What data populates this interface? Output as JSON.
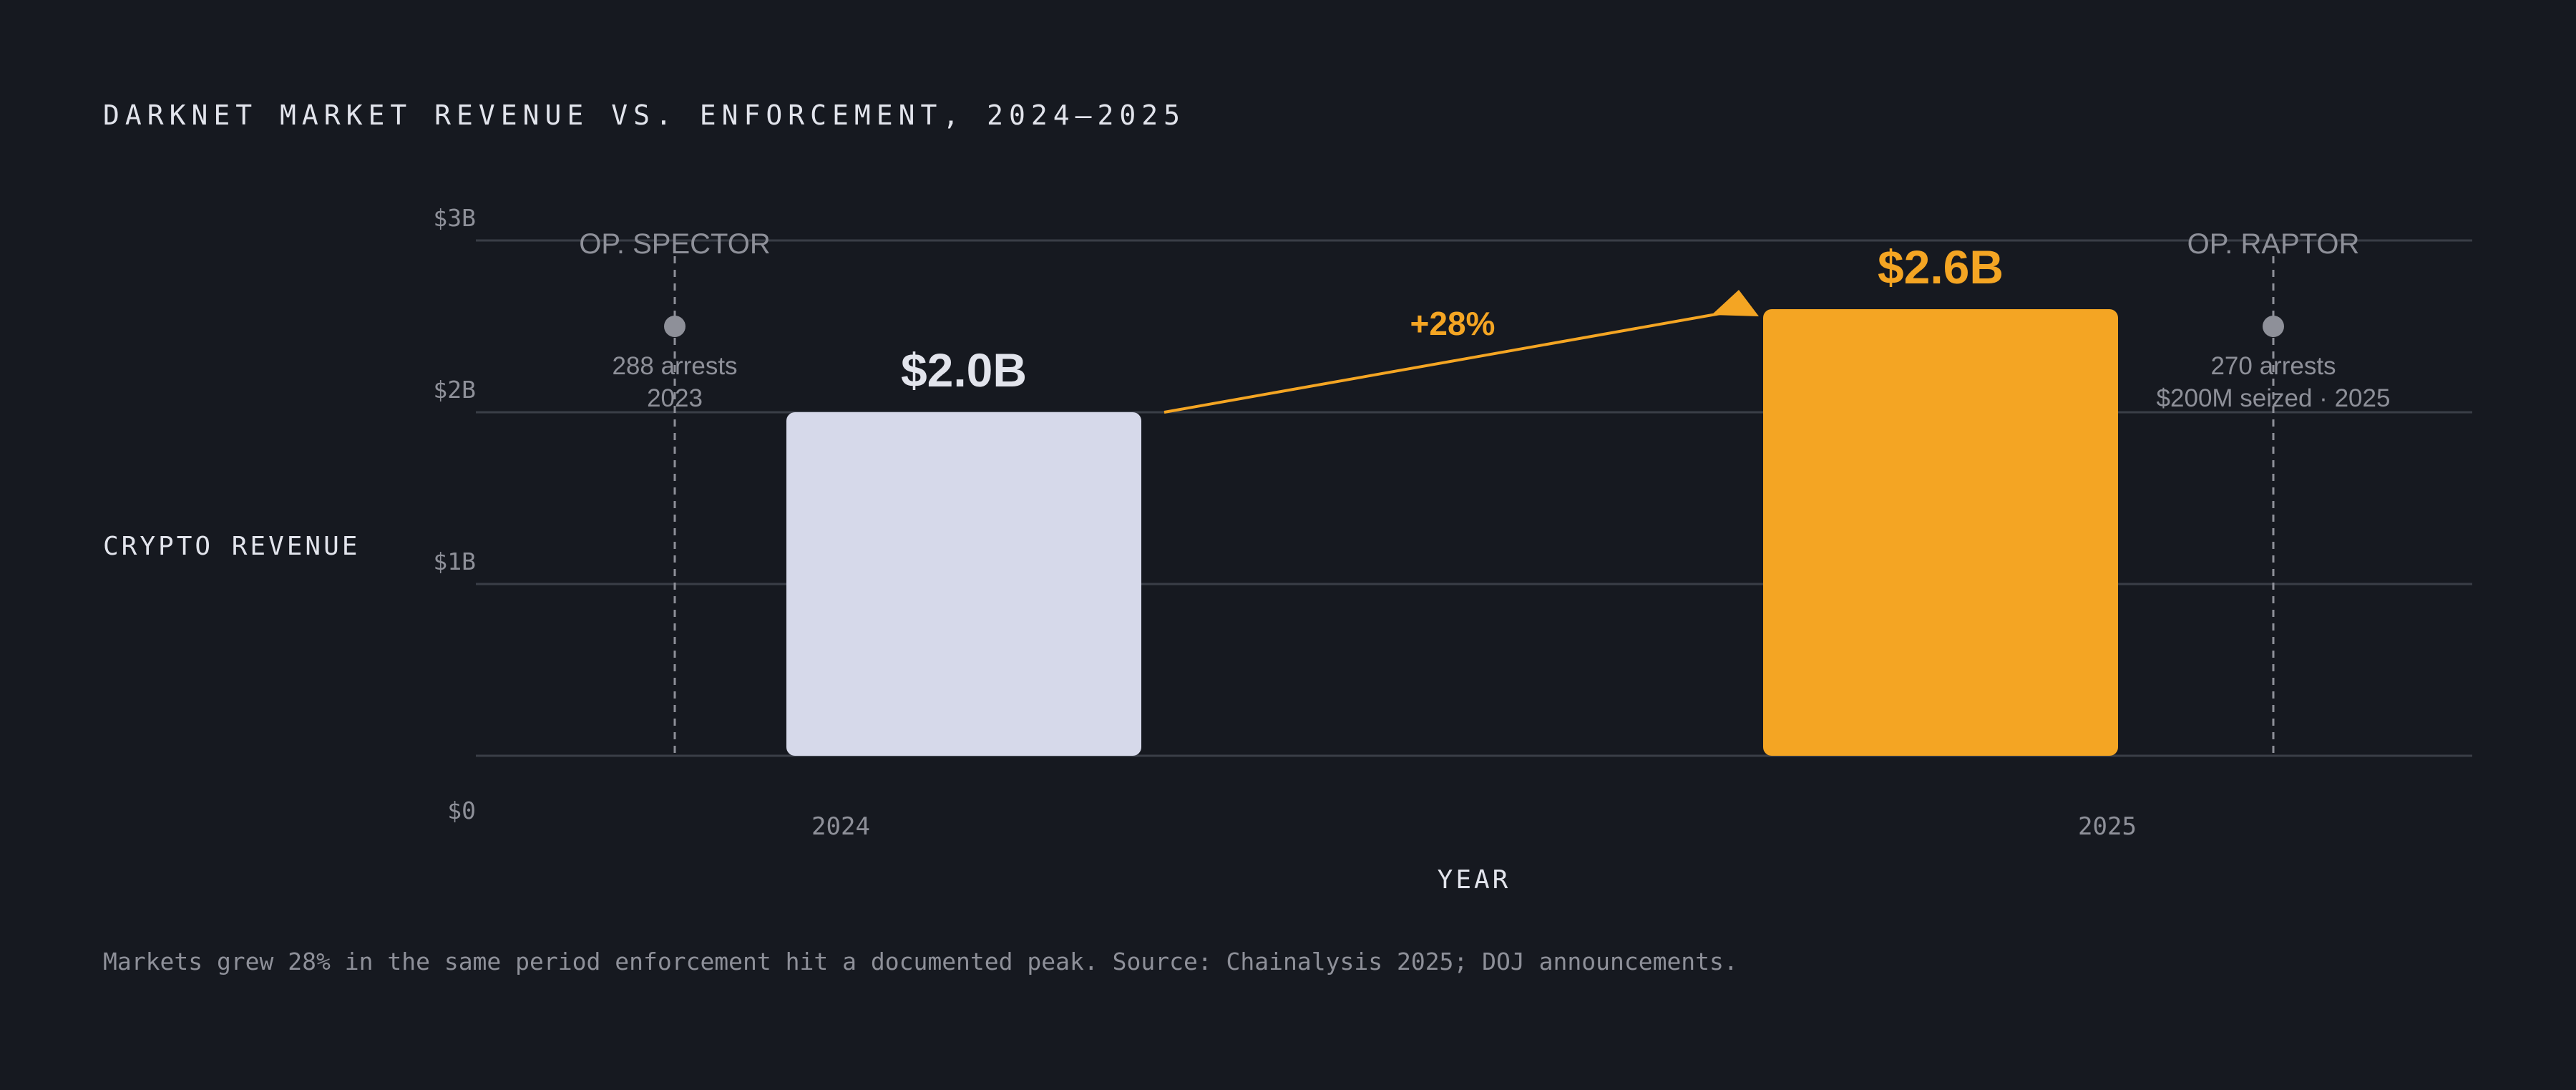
{
  "colors": {
    "background": "#161920",
    "bar_2024": "#d6d9ea",
    "bar_2025": "#f4a523",
    "gridline": "#3a3e47",
    "text_title": "#e2e4ec",
    "text_muted": "#8e9099",
    "marker": "#8e9099",
    "growth_arrow": "#f4a523"
  },
  "title": "DARKNET MARKET REVENUE VS. ENFORCEMENT, 2024–2025",
  "footnote": "Markets grew 28% in the same period enforcement hit a documented peak. Source: Chainalysis 2025; DOJ announcements.",
  "chart_data": {
    "type": "bar",
    "title": "DARKNET MARKET REVENUE VS. ENFORCEMENT, 2024–2025",
    "xlabel": "YEAR",
    "ylabel": "CRYPTO REVENUE",
    "ylim": [
      0,
      3
    ],
    "y_unit": "billions USD",
    "yticks": [
      0,
      1,
      2,
      3
    ],
    "ytick_labels": [
      "$0",
      "$1B",
      "$2B",
      "$3B"
    ],
    "categories": [
      "2024",
      "2025"
    ],
    "values": [
      2.0,
      2.6
    ],
    "data_labels": [
      "$2.0B",
      "$2.6B"
    ],
    "grid": true,
    "annotations": {
      "growth": {
        "from": "2024",
        "to": "2025",
        "label": "+28%"
      },
      "events": [
        {
          "name": "OP. SPECTOR",
          "position": "left of 2024",
          "value": 2.5,
          "lines": [
            "288 arrests",
            "2023"
          ]
        },
        {
          "name": "OP. RAPTOR",
          "position": "right of 2025",
          "value": 2.5,
          "lines": [
            "270 arrests",
            "$200M seized · 2025"
          ]
        }
      ]
    }
  }
}
